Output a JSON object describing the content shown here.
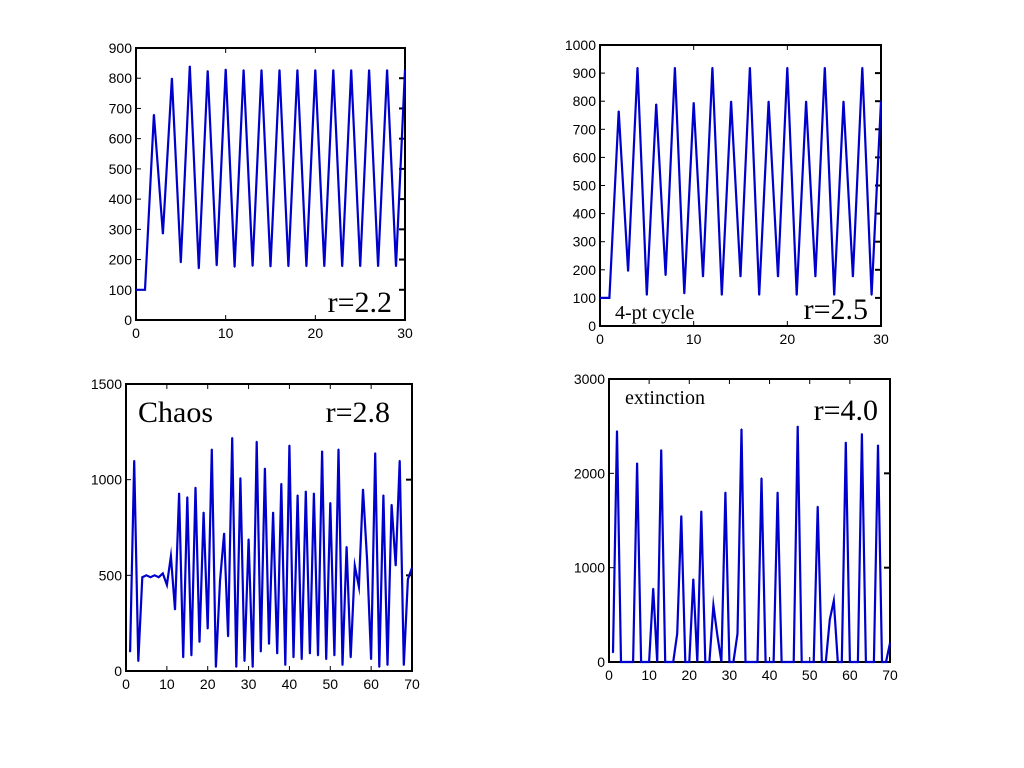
{
  "chart_data": [
    {
      "type": "line",
      "xlim": [
        0,
        30
      ],
      "ylim": [
        0,
        900
      ],
      "xticks": [
        0,
        10,
        20,
        30
      ],
      "yticks": [
        0,
        100,
        200,
        300,
        400,
        500,
        600,
        700,
        800,
        900
      ],
      "xtick_labels": [
        "0",
        "10",
        "20",
        "30"
      ],
      "ytick_labels": [
        "0",
        "100",
        "200",
        "300",
        "400",
        "500",
        "600",
        "700",
        "800",
        "900"
      ],
      "annotations": [
        {
          "text": "r=2.2",
          "size": "large",
          "position": "bottom-right"
        }
      ],
      "series": [
        {
          "color": "#0000cc",
          "x": [
            0,
            1,
            2,
            3,
            4,
            5,
            6,
            7,
            8,
            9,
            10,
            11,
            12,
            13,
            14,
            15,
            16,
            17,
            18,
            19,
            20,
            21,
            22,
            23,
            24,
            25,
            26,
            27,
            28,
            29,
            30
          ],
          "values": [
            100,
            100,
            680,
            285,
            800,
            190,
            840,
            170,
            825,
            180,
            830,
            175,
            828,
            178,
            828,
            176,
            828,
            177,
            828,
            177,
            828,
            177,
            828,
            177,
            828,
            177,
            828,
            177,
            828,
            177,
            828
          ]
        }
      ]
    },
    {
      "type": "line",
      "xlim": [
        0,
        30
      ],
      "ylim": [
        0,
        1000
      ],
      "xticks": [
        0,
        10,
        20,
        30
      ],
      "yticks": [
        0,
        100,
        200,
        300,
        400,
        500,
        600,
        700,
        800,
        900,
        1000
      ],
      "xtick_labels": [
        "0",
        "10",
        "20",
        "30"
      ],
      "ytick_labels": [
        "0",
        "100",
        "200",
        "300",
        "400",
        "500",
        "600",
        "700",
        "800",
        "900",
        "1000"
      ],
      "annotations": [
        {
          "text": "4-pt cycle",
          "size": "small",
          "position": "bottom-left"
        },
        {
          "text": "r=2.5",
          "size": "large",
          "position": "bottom-right"
        }
      ],
      "series": [
        {
          "color": "#0000cc",
          "x": [
            0,
            1,
            2,
            3,
            4,
            5,
            6,
            7,
            8,
            9,
            10,
            11,
            12,
            13,
            14,
            15,
            16,
            17,
            18,
            19,
            20,
            21,
            22,
            23,
            24,
            25,
            26,
            27,
            28,
            29,
            30
          ],
          "values": [
            100,
            100,
            765,
            195,
            920,
            110,
            790,
            180,
            920,
            115,
            795,
            175,
            920,
            110,
            800,
            175,
            920,
            110,
            800,
            175,
            920,
            110,
            800,
            175,
            920,
            110,
            800,
            175,
            920,
            110,
            800
          ]
        }
      ]
    },
    {
      "type": "line",
      "xlim": [
        0,
        70
      ],
      "ylim": [
        0,
        1500
      ],
      "xticks": [
        0,
        10,
        20,
        30,
        40,
        50,
        60,
        70
      ],
      "yticks": [
        0,
        500,
        1000,
        1500
      ],
      "xtick_labels": [
        "0",
        "10",
        "20",
        "30",
        "40",
        "50",
        "60",
        "70"
      ],
      "ytick_labels": [
        "0",
        "500",
        "1000",
        "1500"
      ],
      "annotations": [
        {
          "text": "Chaos",
          "size": "large",
          "position": "top-left"
        },
        {
          "text": "r=2.8",
          "size": "large",
          "position": "top-right"
        }
      ],
      "series": [
        {
          "color": "#0000cc",
          "x": [
            1,
            2,
            3,
            4,
            5,
            6,
            7,
            8,
            9,
            10,
            11,
            12,
            13,
            14,
            15,
            16,
            17,
            18,
            19,
            20,
            21,
            22,
            23,
            24,
            25,
            26,
            27,
            28,
            29,
            30,
            31,
            32,
            33,
            34,
            35,
            36,
            37,
            38,
            39,
            40,
            41,
            42,
            43,
            44,
            45,
            46,
            47,
            48,
            49,
            50,
            51,
            52,
            53,
            54,
            55,
            56,
            57,
            58,
            59,
            60,
            61,
            62,
            63,
            64,
            65,
            66,
            67,
            68,
            69,
            70
          ],
          "values": [
            100,
            1100,
            50,
            490,
            500,
            490,
            500,
            490,
            510,
            450,
            600,
            320,
            930,
            70,
            910,
            80,
            960,
            150,
            830,
            220,
            1160,
            20,
            470,
            720,
            180,
            1220,
            20,
            1010,
            50,
            690,
            20,
            1200,
            100,
            1060,
            140,
            830,
            90,
            980,
            30,
            1180,
            70,
            920,
            60,
            940,
            90,
            930,
            80,
            1150,
            60,
            880,
            80,
            1160,
            30,
            650,
            70,
            550,
            440,
            950,
            580,
            60,
            1140,
            20,
            920,
            30,
            870,
            550,
            1100,
            30,
            480,
            540
          ]
        }
      ]
    },
    {
      "type": "line",
      "xlim": [
        0,
        70
      ],
      "ylim": [
        0,
        3000
      ],
      "xticks": [
        0,
        10,
        20,
        30,
        40,
        50,
        60,
        70
      ],
      "yticks": [
        0,
        1000,
        2000,
        3000
      ],
      "xtick_labels": [
        "0",
        "10",
        "20",
        "30",
        "40",
        "50",
        "60",
        "70"
      ],
      "ytick_labels": [
        "0",
        "1000",
        "2000",
        "3000"
      ],
      "annotations": [
        {
          "text": "extinction",
          "size": "small",
          "position": "top-left"
        },
        {
          "text": "r=4.0",
          "size": "large",
          "position": "top-right"
        }
      ],
      "series": [
        {
          "color": "#0000cc",
          "x": [
            1,
            2,
            3,
            4,
            5,
            6,
            7,
            8,
            9,
            10,
            11,
            12,
            13,
            14,
            15,
            16,
            17,
            18,
            19,
            20,
            21,
            22,
            23,
            24,
            25,
            26,
            27,
            28,
            29,
            30,
            31,
            32,
            33,
            34,
            35,
            36,
            37,
            38,
            39,
            40,
            41,
            42,
            43,
            44,
            45,
            46,
            47,
            48,
            49,
            50,
            51,
            52,
            53,
            54,
            55,
            56,
            57,
            58,
            59,
            60,
            61,
            62,
            63,
            64,
            65,
            66,
            67,
            68,
            69,
            70
          ],
          "values": [
            100,
            2450,
            0,
            0,
            0,
            0,
            2110,
            0,
            0,
            0,
            780,
            0,
            2250,
            0,
            0,
            0,
            300,
            1550,
            0,
            0,
            880,
            0,
            1600,
            0,
            0,
            600,
            280,
            0,
            1800,
            0,
            0,
            300,
            2470,
            0,
            0,
            0,
            0,
            1950,
            0,
            0,
            0,
            1800,
            0,
            0,
            0,
            0,
            2500,
            0,
            0,
            0,
            0,
            1650,
            0,
            0,
            450,
            650,
            0,
            0,
            2330,
            0,
            0,
            0,
            2420,
            0,
            0,
            0,
            2300,
            0,
            0,
            200
          ]
        }
      ]
    }
  ]
}
